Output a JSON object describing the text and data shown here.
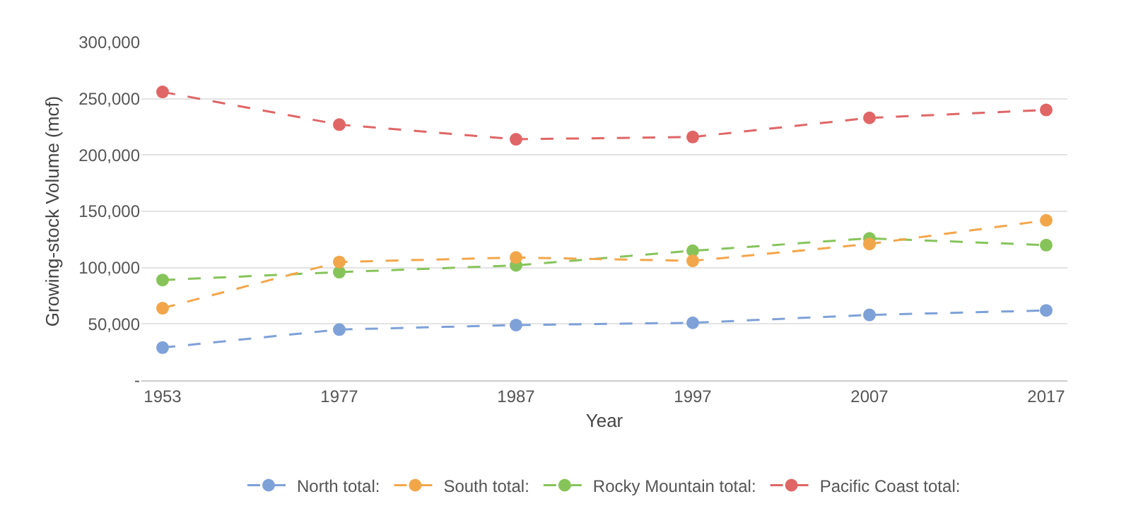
{
  "chart_data": {
    "type": "line",
    "xlabel": "Year",
    "ylabel": "Growing-stock Volume (mcf)",
    "categories": [
      "1953",
      "1977",
      "1987",
      "1997",
      "2007",
      "2017"
    ],
    "series": [
      {
        "name": "North total:",
        "color": "#7ea1d8",
        "values": [
          29000,
          45000,
          49000,
          51000,
          58000,
          62000
        ]
      },
      {
        "name": "South total:",
        "color": "#f2a64a",
        "values": [
          64000,
          105000,
          109000,
          106000,
          121000,
          142000
        ]
      },
      {
        "name": "Rocky Mountain total:",
        "color": "#86c45a",
        "values": [
          89000,
          96000,
          102000,
          115000,
          126000,
          120000
        ]
      },
      {
        "name": "Pacific Coast total:",
        "color": "#e06666",
        "values": [
          256000,
          227000,
          214000,
          216000,
          233000,
          240000
        ]
      }
    ],
    "ylim": [
      0,
      300000
    ],
    "yticks": [
      {
        "value": 0,
        "label": "-"
      },
      {
        "value": 50000,
        "label": "50,000"
      },
      {
        "value": 100000,
        "label": "100,000"
      },
      {
        "value": 150000,
        "label": "150,000"
      },
      {
        "value": 200000,
        "label": "200,000"
      },
      {
        "value": 250000,
        "label": "250,000"
      },
      {
        "value": 300000,
        "label": "300,000"
      }
    ],
    "grid": "y",
    "legend": "bottom",
    "marker": "circle",
    "line_style": "dashed"
  }
}
